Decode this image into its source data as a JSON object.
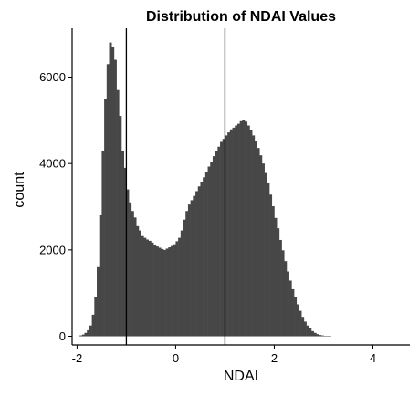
{
  "chart_data": {
    "type": "bar",
    "title": "Distribution of NDAI Values",
    "xlabel": "NDAI",
    "ylabel": "count",
    "xlim": [
      -2.1,
      4.75
    ],
    "ylim": [
      -200,
      7130
    ],
    "x_ticks": [
      -2,
      0,
      2,
      4
    ],
    "y_ticks": [
      0,
      2000,
      4000,
      6000
    ],
    "x_tick_labels": [
      "-2",
      "0",
      "2",
      "4"
    ],
    "y_tick_labels": [
      "0",
      "2000",
      "4000",
      "6000"
    ],
    "bin_width": 0.05,
    "bin_start": -1.95,
    "values": [
      20,
      40,
      80,
      140,
      250,
      500,
      900,
      1600,
      2800,
      4300,
      5500,
      6300,
      6800,
      6700,
      6400,
      5700,
      5100,
      4300,
      3900,
      3400,
      3100,
      2900,
      2750,
      2550,
      2450,
      2320,
      2280,
      2240,
      2210,
      2170,
      2120,
      2080,
      2050,
      2020,
      2000,
      2030,
      2060,
      2090,
      2130,
      2200,
      2280,
      2450,
      2700,
      2900,
      3050,
      3150,
      3250,
      3360,
      3470,
      3580,
      3680,
      3800,
      3930,
      4040,
      4170,
      4290,
      4390,
      4500,
      4570,
      4650,
      4720,
      4790,
      4830,
      4880,
      4920,
      4980,
      5000,
      4970,
      4880,
      4780,
      4650,
      4510,
      4360,
      4190,
      4000,
      3780,
      3540,
      3280,
      3010,
      2740,
      2500,
      2230,
      1990,
      1740,
      1500,
      1290,
      1090,
      900,
      740,
      590,
      450,
      340,
      250,
      180,
      120,
      80,
      50,
      30,
      20,
      10,
      10,
      10
    ],
    "reference_lines": [
      -1,
      1
    ],
    "bar_color": "#474747",
    "line_color": "#000000",
    "grid": false,
    "legend": "none"
  }
}
